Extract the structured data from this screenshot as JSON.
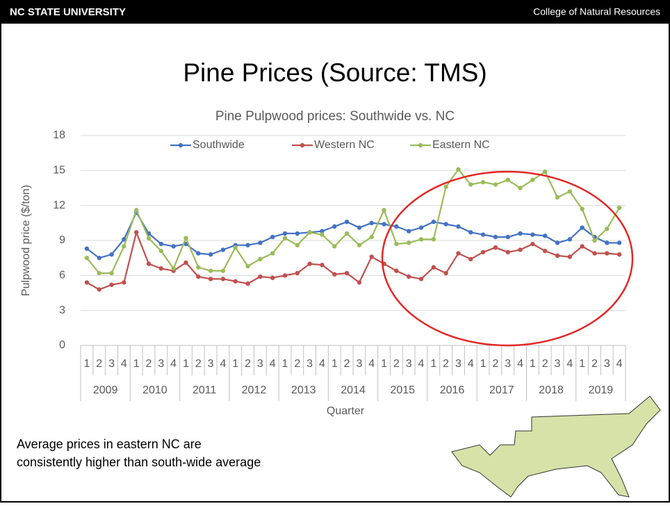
{
  "header": {
    "left": "NC STATE UNIVERSITY",
    "right": "College of Natural Resources"
  },
  "slide_title": "Pine Prices (Source: TMS)",
  "chart_data": {
    "type": "line",
    "title": "Pine Pulpwood prices: Southwide vs. NC",
    "y_label": "Pulpwood price ($/ton)",
    "x_label": "Quarter",
    "categories": [
      "1",
      "2",
      "3",
      "4",
      "1",
      "2",
      "3",
      "4",
      "1",
      "2",
      "3",
      "4",
      "1",
      "2",
      "3",
      "4",
      "1",
      "2",
      "3",
      "4",
      "1",
      "2",
      "3",
      "4",
      "1",
      "2",
      "3",
      "4",
      "1",
      "2",
      "3",
      "4",
      "1",
      "2",
      "3",
      "4",
      "1",
      "2",
      "3",
      "4",
      "1",
      "2",
      "3",
      "4"
    ],
    "groups": [
      "2009",
      "2010",
      "2011",
      "2012",
      "2013",
      "2014",
      "2015",
      "2016",
      "2017",
      "2018",
      "2019"
    ],
    "series": [
      {
        "name": "Southwide",
        "color": "#4472c4",
        "values": [
          8.3,
          7.5,
          7.8,
          9.1,
          11.4,
          9.6,
          8.7,
          8.5,
          8.7,
          7.9,
          7.8,
          8.2,
          8.6,
          8.6,
          8.8,
          9.3,
          9.6,
          9.6,
          9.7,
          9.8,
          10.2,
          10.6,
          10.1,
          10.5,
          10.4,
          10.2,
          9.8,
          10.1,
          10.6,
          10.4,
          10.2,
          9.7,
          9.5,
          9.3,
          9.3,
          9.6,
          9.5,
          9.4,
          8.8,
          9.1,
          10.1,
          9.3,
          8.8,
          8.8
        ]
      },
      {
        "name": "Western NC",
        "color": "#c0504d",
        "values": [
          5.4,
          4.8,
          5.2,
          5.4,
          9.7,
          7.0,
          6.6,
          6.4,
          7.1,
          5.9,
          5.7,
          5.7,
          5.5,
          5.3,
          5.9,
          5.8,
          6.0,
          6.2,
          7.0,
          6.9,
          6.1,
          6.2,
          5.4,
          7.6,
          7.0,
          6.4,
          5.9,
          5.7,
          6.7,
          6.2,
          7.9,
          7.4,
          8.0,
          8.4,
          8.0,
          8.2,
          8.7,
          8.1,
          7.7,
          7.6,
          8.5,
          7.9,
          7.9,
          7.8
        ]
      },
      {
        "name": "Eastern NC",
        "color": "#9bbb59",
        "values": [
          7.5,
          6.2,
          6.2,
          8.5,
          11.6,
          9.2,
          8.1,
          6.6,
          9.2,
          6.7,
          6.4,
          6.4,
          8.4,
          6.8,
          7.4,
          7.9,
          9.2,
          8.6,
          9.7,
          9.5,
          8.5,
          9.6,
          8.6,
          9.3,
          11.6,
          8.7,
          8.8,
          9.1,
          9.1,
          13.6,
          15.1,
          13.8,
          14.0,
          13.8,
          14.2,
          13.5,
          14.2,
          14.9,
          12.7,
          13.2,
          11.7,
          9.0,
          10.0,
          11.8
        ]
      }
    ],
    "ylim": [
      0,
      18
    ],
    "yticks": [
      0,
      3,
      6,
      9,
      12,
      15,
      18
    ],
    "grid": true,
    "legend": "top"
  },
  "annotation": [
    "Average prices in eastern NC are",
    "consistently higher than south-wide average"
  ]
}
